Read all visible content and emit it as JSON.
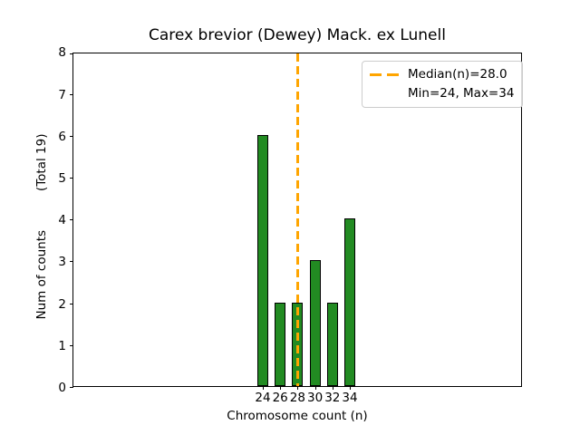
{
  "figure": {
    "title": "Carex brevior (Dewey) Mack. ex Lunell",
    "xlabel": "Chromosome count (n)",
    "ylabel": "Num of counts          (Total 19)",
    "legend": {
      "median_label": "Median(n)=28.0",
      "minmax_label": "Min=24, Max=34"
    },
    "colors": {
      "bar_fill": "#228B22",
      "bar_edge": "#000000",
      "median_line": "#FFA500",
      "legend_border": "#cccccc",
      "background": "#ffffff"
    }
  },
  "chart_data": {
    "type": "bar",
    "title": "Carex brevior (Dewey) Mack. ex Lunell",
    "xlabel": "Chromosome count (n)",
    "ylabel": "Num of counts (Total 19)",
    "categories": [
      24,
      26,
      28,
      30,
      32,
      34
    ],
    "values": [
      6,
      2,
      2,
      3,
      2,
      4
    ],
    "total_counts": 19,
    "median": 28.0,
    "min": 24,
    "max": 34,
    "ylim": [
      0,
      8
    ],
    "yticks": [
      0,
      1,
      2,
      3,
      4,
      5,
      6,
      7,
      8
    ],
    "median_vline_x": 28,
    "grid": false,
    "legend_position": "upper right",
    "legend_entries": [
      "Median(n)=28.0",
      "Min=24, Max=34"
    ]
  }
}
